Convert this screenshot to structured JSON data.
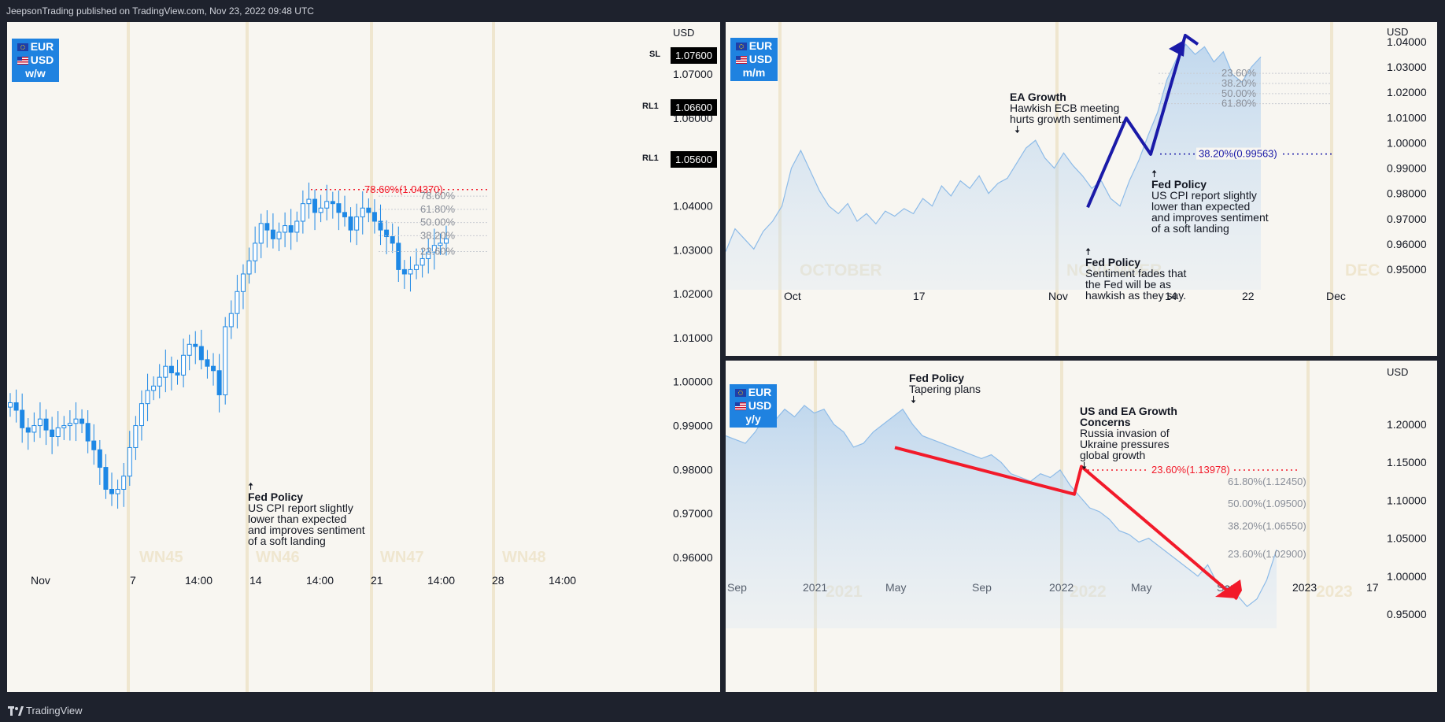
{
  "header": {
    "published": "JeepsonTrading published on TradingView.com, Nov 23, 2022 09:48 UTC"
  },
  "footer": {
    "brand": "TradingView"
  },
  "colors": {
    "up": "#1e88e5",
    "line": "#5b9bd5",
    "arrow_blue": "#1a1aa8",
    "arrow_red": "#f21a2a",
    "fib": "#8a8f99",
    "bg": "#f8f6f1"
  },
  "left": {
    "badge": {
      "base": "EUR",
      "quote": "USD",
      "period": "w/w"
    },
    "axis_unit": "USD",
    "price_labels": [
      {
        "tag": "SL",
        "value": "1.07600"
      },
      {
        "tag": "RL1",
        "value": "1.06600"
      },
      {
        "tag": "RL1",
        "value": "1.05600"
      }
    ],
    "week_labels": [
      "WN45",
      "WN46",
      "WN47",
      "WN48"
    ],
    "fib_main": "78.60%(1.04370)",
    "fib_levels": [
      "78.60%",
      "61.80%",
      "50.00%",
      "38.20%",
      "23.60%"
    ],
    "annotation": {
      "title": "Fed Policy",
      "lines": [
        "US CPI report slightly",
        "lower than expected",
        "and improves sentiment",
        "of a soft landing"
      ]
    }
  },
  "top_right": {
    "badge": {
      "base": "EUR",
      "quote": "USD",
      "period": "m/m"
    },
    "axis_unit": "USD",
    "month_labels": [
      "OCTOBER",
      "NOVEMBER",
      "DEC"
    ],
    "fib_main": "38.20%(0.99563)",
    "fib_levels": [
      "23.60%",
      "38.20%",
      "50.00%",
      "61.80%"
    ],
    "annotations": [
      {
        "title": "EA Growth",
        "lines": [
          "Hawkish ECB meeting",
          "hurts growth sentiment."
        ]
      },
      {
        "title": "Fed Policy",
        "lines": [
          "US CPI report slightly",
          "lower than expected",
          "and improves sentiment",
          "of a soft landing"
        ]
      },
      {
        "title": "Fed Policy",
        "lines": [
          "Sentiment fades that",
          "the Fed will be as",
          "hawkish as they say."
        ]
      }
    ]
  },
  "bottom_right": {
    "badge": {
      "base": "EUR",
      "quote": "USD",
      "period": "y/y"
    },
    "axis_unit": "USD",
    "year_labels": [
      "2021",
      "2022",
      "2023"
    ],
    "fib_main": "23.60%(1.13978)",
    "fib_levels": [
      "61.80%(1.12450)",
      "50.00%(1.09500)",
      "38.20%(1.06550)",
      "23.60%(1.02900)"
    ],
    "annotations": [
      {
        "title": "Fed Policy",
        "lines": [
          "Tapering plans"
        ]
      },
      {
        "title": "US and EA Growth",
        "title2": "Concerns",
        "lines": [
          "Russia invasion of",
          "Ukraine pressures",
          "global growth"
        ]
      }
    ]
  },
  "chart_data": [
    {
      "type": "candlestick",
      "title": "EUR/USD w/w",
      "ylabel": "USD",
      "ylim": [
        0.955,
        1.083
      ],
      "x_ticks": [
        "Nov",
        "7",
        "14:00",
        "14",
        "14:00",
        "21",
        "14:00",
        "28",
        "14:00"
      ],
      "y_ticks": [
        "1.07000",
        "1.06000",
        "1.05000",
        "1.04000",
        "1.03000",
        "1.02000",
        "1.01000",
        "1.00000",
        "0.99000",
        "0.98000",
        "0.97000",
        "0.96000"
      ],
      "fib_prices": [
        1.0437,
        1.0422,
        1.0392,
        1.0362,
        1.0332,
        1.0296
      ],
      "close_path": [
        0.9952,
        0.9935,
        0.9895,
        0.9885,
        0.99,
        0.9915,
        0.989,
        0.9875,
        0.9895,
        0.99,
        0.9905,
        0.9915,
        0.9905,
        0.9865,
        0.9845,
        0.9805,
        0.9755,
        0.9745,
        0.9755,
        0.9785,
        0.985,
        0.99,
        0.995,
        0.998,
        0.999,
        1.001,
        1.0035,
        1.002,
        1.0015,
        1.006,
        1.0085,
        1.008,
        1.005,
        1.0035,
        1.0025,
        0.997,
        1.0125,
        1.0155,
        1.0205,
        1.0245,
        1.0275,
        1.0315,
        1.036,
        1.0345,
        1.0325,
        1.034,
        1.0355,
        1.034,
        1.0365,
        1.0405,
        1.0415,
        1.0385,
        1.0395,
        1.041,
        1.0405,
        1.0385,
        1.0375,
        1.0345,
        1.0375,
        1.0395,
        1.0385,
        1.0365,
        1.0345,
        1.033,
        1.0315,
        1.0255,
        1.0245,
        1.0255,
        1.0265,
        1.028,
        1.0295,
        1.031,
        1.0315,
        1.0325
      ]
    },
    {
      "type": "area",
      "title": "EUR/USD m/m",
      "ylabel": "USD",
      "ylim": [
        0.945,
        1.042
      ],
      "x_ticks": [
        "Oct",
        "17",
        "Nov",
        "14",
        "22",
        "Dec"
      ],
      "y_ticks": [
        "1.04000",
        "1.03000",
        "1.02000",
        "1.01000",
        "1.00000",
        "0.99000",
        "0.98000",
        "0.97000",
        "0.96000",
        "0.95000"
      ],
      "fib_prices": [
        1.0275,
        1.0235,
        1.0195,
        1.0155,
        0.9956
      ],
      "values": [
        0.957,
        0.966,
        0.962,
        0.958,
        0.965,
        0.969,
        0.975,
        0.99,
        0.997,
        0.989,
        0.981,
        0.975,
        0.972,
        0.976,
        0.969,
        0.972,
        0.968,
        0.973,
        0.971,
        0.974,
        0.972,
        0.978,
        0.975,
        0.983,
        0.979,
        0.985,
        0.982,
        0.987,
        0.98,
        0.984,
        0.986,
        0.992,
        0.998,
        1.001,
        0.994,
        0.99,
        0.996,
        0.991,
        0.987,
        0.982,
        0.985,
        0.978,
        0.975,
        0.985,
        0.993,
        1.003,
        1.012,
        1.025,
        1.033,
        1.039,
        1.035,
        1.038,
        1.032,
        1.036,
        1.027,
        1.024,
        1.03,
        1.034
      ]
    },
    {
      "type": "area",
      "title": "EUR/USD y/y",
      "ylabel": "USD",
      "ylim": [
        0.93,
        1.25
      ],
      "x_ticks": [
        "Sep",
        "2021",
        "May",
        "Sep",
        "2022",
        "May",
        "Sep",
        "2023",
        "17"
      ],
      "y_ticks": [
        "1.20000",
        "1.15000",
        "1.10000",
        "1.05000",
        "1.00000",
        "0.95000"
      ],
      "fib_prices": [
        1.13978,
        1.1245,
        1.095,
        1.0655,
        1.029
      ],
      "values": [
        1.185,
        1.18,
        1.175,
        1.19,
        1.21,
        1.205,
        1.22,
        1.21,
        1.225,
        1.215,
        1.22,
        1.2,
        1.19,
        1.17,
        1.175,
        1.19,
        1.2,
        1.21,
        1.22,
        1.2,
        1.185,
        1.18,
        1.175,
        1.17,
        1.165,
        1.16,
        1.155,
        1.16,
        1.15,
        1.135,
        1.13,
        1.125,
        1.135,
        1.13,
        1.14,
        1.12,
        1.105,
        1.09,
        1.085,
        1.075,
        1.06,
        1.055,
        1.045,
        1.05,
        1.04,
        1.03,
        1.02,
        1.01,
        1.0,
        1.015,
        0.99,
        0.985,
        0.975,
        0.96,
        0.97,
        0.995,
        1.035
      ]
    }
  ]
}
